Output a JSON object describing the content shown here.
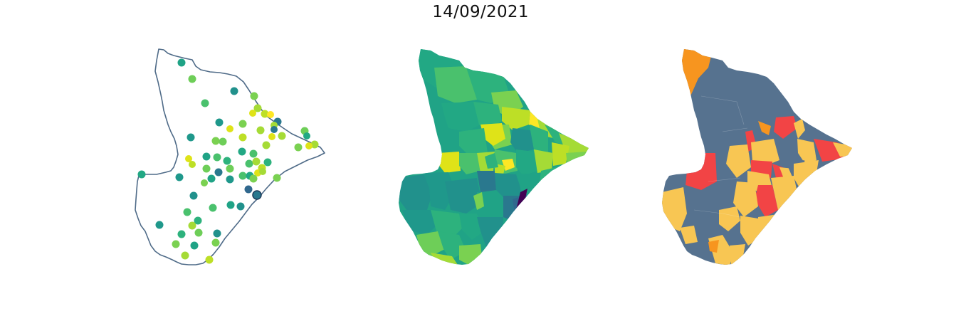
{
  "figure": {
    "title": "14/09/2021"
  },
  "maps": [
    {
      "id": "points",
      "kind": "point-map",
      "outline_color": "#4f6b88",
      "colormap": "viridis"
    },
    {
      "id": "choropleth",
      "kind": "choropleth",
      "colormap": "viridis"
    },
    {
      "id": "classified",
      "kind": "categorical-choropleth",
      "class_colors": [
        "#56728f",
        "#f8c653",
        "#f7951f",
        "#f24445"
      ]
    }
  ]
}
